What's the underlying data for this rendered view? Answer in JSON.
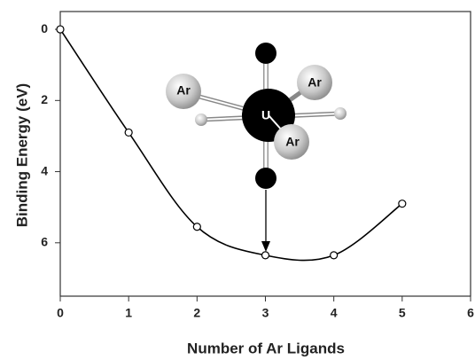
{
  "chart_data": {
    "type": "line",
    "x_label": "Number of Ar Ligands",
    "y_label": "Binding Energy (eV)",
    "x": [
      0,
      1,
      2,
      3,
      4,
      5
    ],
    "series": [
      {
        "color": "#000000",
        "values": [
          0,
          2.9,
          5.55,
          6.35,
          6.35,
          4.9
        ]
      }
    ],
    "xlim": [
      0,
      6
    ],
    "xticks": [
      0,
      1,
      2,
      3,
      4,
      5,
      6
    ],
    "ylim": [
      7.5,
      -0.5
    ],
    "yticks": [
      0,
      2,
      4,
      6
    ],
    "atom_labels": [
      "Ar",
      "Ar",
      "Ar",
      "U"
    ]
  }
}
